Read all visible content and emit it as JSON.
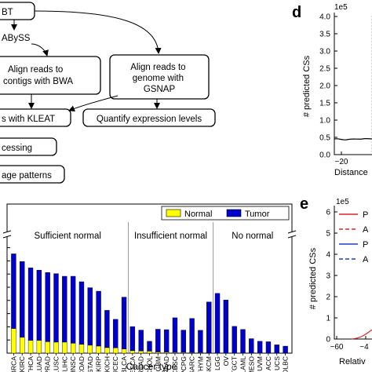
{
  "flowchart": {
    "steps": [
      "BT",
      "ABySS",
      "Align reads to\ncontigs with BWA",
      "Align reads to\ngenome with\nGSNAP",
      "s with KLEAT",
      "Quantify expression levels",
      "cessing",
      "age patterns"
    ]
  },
  "panel_d": {
    "letter": "d",
    "multiplier": "1e5",
    "ylabel": "# predicted CSs",
    "xlabel": "Distance",
    "yticks": [
      "0.0",
      "0.5",
      "1.0",
      "1.5",
      "2.0",
      "2.5",
      "3.0",
      "3.5",
      "4.0"
    ],
    "xticks": [
      "−20"
    ]
  },
  "panel_e": {
    "letter": "e",
    "multiplier": "1e5",
    "ylabel": "# predicted CSs",
    "xlabel": "Relativ",
    "yticks": [
      "0",
      "1",
      "2",
      "3",
      "4",
      "5",
      "6"
    ],
    "xticks": [
      "−60",
      "−4"
    ],
    "legend": [
      "P",
      "A",
      "P",
      "A"
    ],
    "colors": {
      "red": "#d62728",
      "blue": "#1f3fbf"
    }
  },
  "chart_data": [
    {
      "type": "bar",
      "xlabel": "Cancer type",
      "ylabel": "",
      "categories": [
        "BRCA",
        "KIRC",
        "THCA",
        "LUAD",
        "PRAD",
        "LUSC",
        "LIHC",
        "HNSC",
        "COAD",
        "STAD",
        "KIRP",
        "KICH",
        "UCEC",
        "BLCA",
        "ESCA",
        "READ",
        "CHOL",
        "GBM",
        "PAAD",
        "CESC",
        "PCPG",
        "SARC",
        "THYM",
        "SKCM",
        "LGG",
        "OV",
        "TGCT",
        "LAML",
        "MESO",
        "UVM",
        "ACC",
        "UCS",
        "DLBC"
      ],
      "series": [
        {
          "name": "Normal",
          "color": "#ffff00",
          "values": [
            112,
            72,
            58,
            58,
            52,
            50,
            50,
            45,
            40,
            36,
            32,
            25,
            24,
            19,
            11,
            10,
            9,
            5,
            4,
            3,
            3,
            2,
            2,
            1,
            0,
            0,
            0,
            0,
            0,
            0,
            0,
            0,
            0
          ]
        },
        {
          "name": "Tumor",
          "color": "#0000cc",
          "values": [
            340,
            345,
            330,
            320,
            315,
            312,
            300,
            305,
            285,
            262,
            250,
            170,
            130,
            236,
            110,
            95,
            45,
            104,
            103,
            158,
            102,
            156,
            102,
            232,
            272,
            242,
            122,
            108,
            66,
            54,
            52,
            38,
            32
          ]
        }
      ],
      "groups": [
        "Sufficient normal",
        "Insufficient normal",
        "No normal"
      ],
      "ylim": [
        0,
        550
      ],
      "legend": "top-right"
    }
  ]
}
